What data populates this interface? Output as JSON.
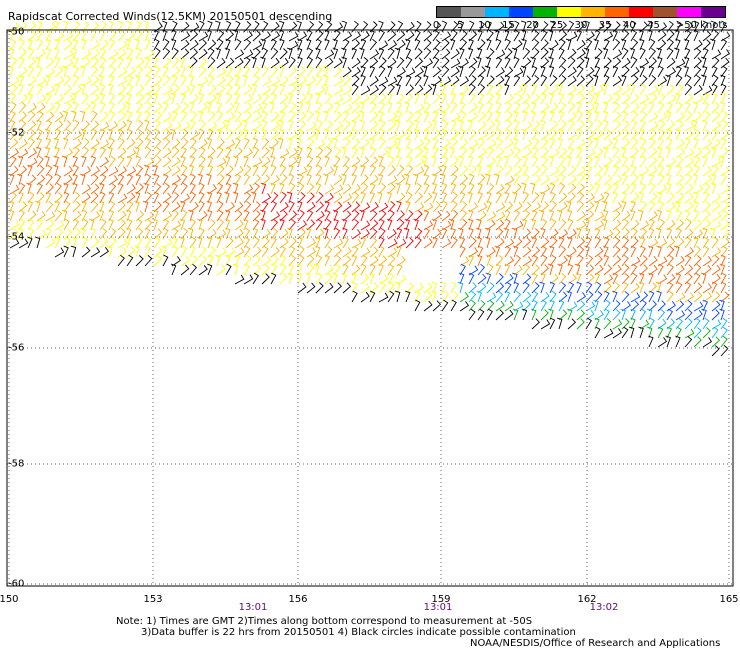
{
  "title": "Rapidscat Corrected Winds(12.5KM) 20150501 descending",
  "legend": {
    "labels": [
      "0",
      "5",
      "10",
      "15",
      "20",
      "25",
      "30",
      "35",
      "40",
      "45",
      ">50 knots"
    ],
    "colors": [
      "#555555",
      "#999999",
      "#00b4ff",
      "#0044ff",
      "#00b400",
      "#ffff00",
      "#ffb400",
      "#ff6400",
      "#ff0000",
      "#a0522d",
      "#ff00ff",
      "#6a0090"
    ]
  },
  "axes": {
    "lat_labels": [
      "-50",
      "-52",
      "-54",
      "-56",
      "-58",
      "-60"
    ],
    "lon_labels": [
      "150",
      "153",
      "156",
      "159",
      "162",
      "165"
    ],
    "lat_range": [
      -60,
      -50
    ],
    "lon_range": [
      150,
      165
    ]
  },
  "times": [
    {
      "label": "13:01",
      "lon": 155
    },
    {
      "label": "13:01",
      "lon": 158.9
    },
    {
      "label": "13:02",
      "lon": 162.4
    }
  ],
  "notes": {
    "line1": "Note: 1) Times are GMT 2)Times along bottom correspond to measurement at -50S",
    "line2": "3)Data buffer is 22 hrs from 20150501 4) Black circles indicate possible contamination",
    "credit": "NOAA/NESDIS/Office of Research and Applications"
  }
}
